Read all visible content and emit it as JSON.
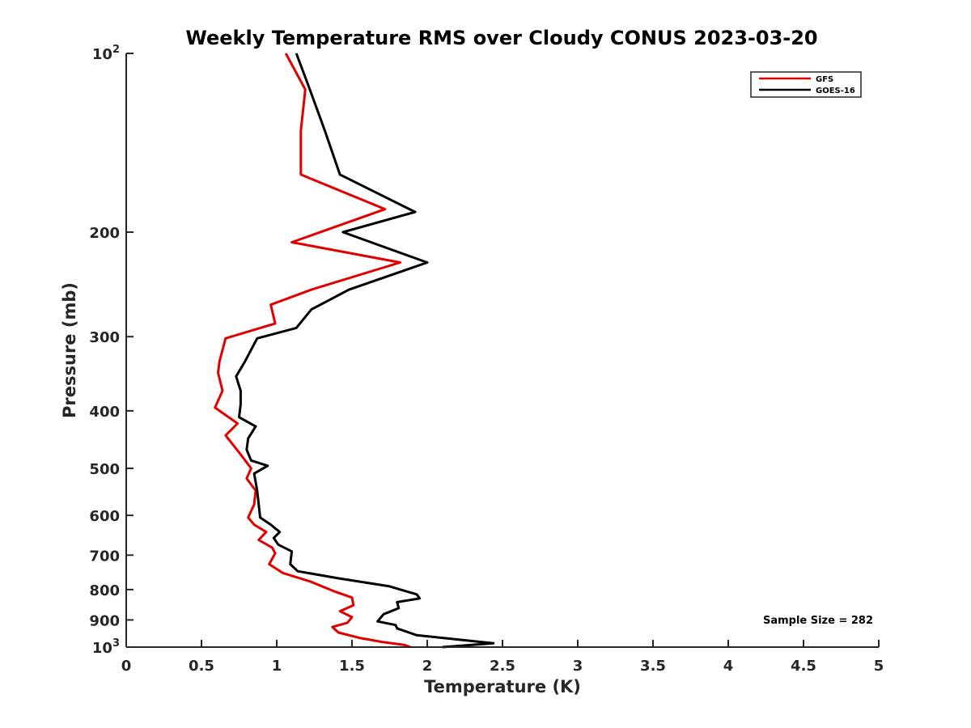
{
  "chart_data": {
    "type": "line",
    "title": "Weekly Temperature RMS over Cloudy CONUS 2023-03-20",
    "xlabel": "Temperature (K)",
    "ylabel": "Pressure (mb)",
    "xlim": [
      0,
      5
    ],
    "ylim": [
      100,
      1000
    ],
    "y_scale": "log",
    "y_reversed": true,
    "grid": false,
    "legend_position": "top-right",
    "x_ticks": [
      "0",
      "0.5",
      "1",
      "1.5",
      "2",
      "2.5",
      "3",
      "3.5",
      "4",
      "4.5",
      "5"
    ],
    "y_ticks": [
      {
        "value": 100,
        "base": "10",
        "exp": "2"
      },
      {
        "value": 200,
        "base": "200",
        "exp": ""
      },
      {
        "value": 300,
        "base": "300",
        "exp": ""
      },
      {
        "value": 400,
        "base": "400",
        "exp": ""
      },
      {
        "value": 500,
        "base": "500",
        "exp": ""
      },
      {
        "value": 600,
        "base": "600",
        "exp": ""
      },
      {
        "value": 700,
        "base": "700",
        "exp": ""
      },
      {
        "value": 800,
        "base": "800",
        "exp": ""
      },
      {
        "value": 900,
        "base": "900",
        "exp": ""
      },
      {
        "value": 1000,
        "base": "10",
        "exp": "3"
      }
    ],
    "annotation": "Sample Size = 282",
    "series": [
      {
        "name": "GFS",
        "color": "#e00000",
        "points": [
          [
            1.06,
            100
          ],
          [
            1.19,
            115
          ],
          [
            1.16,
            135
          ],
          [
            1.16,
            160
          ],
          [
            1.72,
            183
          ],
          [
            1.1,
            208
          ],
          [
            1.82,
            225
          ],
          [
            1.23,
            250
          ],
          [
            0.96,
            265
          ],
          [
            0.99,
            285
          ],
          [
            0.66,
            302
          ],
          [
            0.62,
            330
          ],
          [
            0.61,
            345
          ],
          [
            0.64,
            370
          ],
          [
            0.59,
            395
          ],
          [
            0.74,
            420
          ],
          [
            0.66,
            440
          ],
          [
            0.75,
            470
          ],
          [
            0.83,
            500
          ],
          [
            0.8,
            520
          ],
          [
            0.86,
            545
          ],
          [
            0.85,
            575
          ],
          [
            0.81,
            605
          ],
          [
            0.85,
            622
          ],
          [
            0.93,
            640
          ],
          [
            0.88,
            660
          ],
          [
            0.97,
            680
          ],
          [
            0.99,
            695
          ],
          [
            0.95,
            725
          ],
          [
            1.04,
            750
          ],
          [
            1.22,
            775
          ],
          [
            1.38,
            805
          ],
          [
            1.5,
            825
          ],
          [
            1.51,
            850
          ],
          [
            1.42,
            870
          ],
          [
            1.5,
            890
          ],
          [
            1.47,
            910
          ],
          [
            1.37,
            925
          ],
          [
            1.41,
            945
          ],
          [
            1.55,
            965
          ],
          [
            1.7,
            980
          ],
          [
            1.85,
            992
          ],
          [
            1.89,
            1000
          ]
        ]
      },
      {
        "name": "GOES-16",
        "color": "#000000",
        "points": [
          [
            1.13,
            100
          ],
          [
            1.22,
            115
          ],
          [
            1.32,
            135
          ],
          [
            1.42,
            160
          ],
          [
            1.92,
            185
          ],
          [
            1.44,
            200
          ],
          [
            2.0,
            225
          ],
          [
            1.48,
            250
          ],
          [
            1.23,
            270
          ],
          [
            1.13,
            290
          ],
          [
            0.87,
            302
          ],
          [
            0.79,
            330
          ],
          [
            0.73,
            350
          ],
          [
            0.76,
            370
          ],
          [
            0.76,
            390
          ],
          [
            0.75,
            410
          ],
          [
            0.86,
            425
          ],
          [
            0.81,
            445
          ],
          [
            0.8,
            465
          ],
          [
            0.83,
            485
          ],
          [
            0.94,
            495
          ],
          [
            0.85,
            510
          ],
          [
            0.87,
            545
          ],
          [
            0.88,
            575
          ],
          [
            0.89,
            605
          ],
          [
            0.96,
            622
          ],
          [
            1.02,
            640
          ],
          [
            0.98,
            655
          ],
          [
            1.01,
            672
          ],
          [
            1.1,
            690
          ],
          [
            1.09,
            725
          ],
          [
            1.14,
            745
          ],
          [
            1.4,
            765
          ],
          [
            1.75,
            790
          ],
          [
            1.93,
            815
          ],
          [
            1.95,
            828
          ],
          [
            1.8,
            840
          ],
          [
            1.81,
            860
          ],
          [
            1.71,
            880
          ],
          [
            1.67,
            905
          ],
          [
            1.79,
            918
          ],
          [
            1.8,
            930
          ],
          [
            1.93,
            955
          ],
          [
            2.44,
            985
          ],
          [
            2.1,
            1000
          ]
        ]
      }
    ]
  }
}
